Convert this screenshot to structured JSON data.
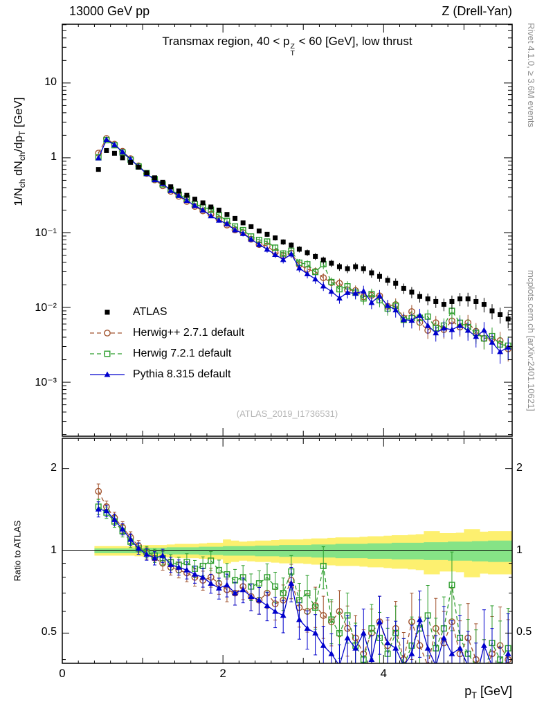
{
  "header": {
    "left": "13000 GeV pp",
    "right": "Z (Drell-Yan)"
  },
  "panel_title": {
    "prefix": "Transmax region, 40 < ",
    "p": "p",
    "sup": "Z",
    "sub": "T",
    "suffix": " < 60 [GeV], low thrust"
  },
  "side_notes": {
    "top_right": "Rivet 4.1.0, ≥ 3.6M events",
    "bottom_right": "mcplots.cern.ch [arXiv:2401.10621]"
  },
  "watermark": "(ATLAS_2019_I1736531)",
  "axis_labels": {
    "y_main_parts": [
      {
        "t": "1/N"
      },
      {
        "t": "ch"
      },
      {
        "t": " dN"
      },
      {
        "t": "ch"
      },
      {
        "t": "/dp"
      },
      {
        "t": "T"
      },
      {
        "t": " [GeV]"
      }
    ],
    "y_ratio": "Ratio to ATLAS",
    "x_parts": [
      {
        "t": "p"
      },
      {
        "t": "T"
      },
      {
        "t": " [GeV]"
      }
    ]
  },
  "chart_data": {
    "type": "line",
    "title": "Transmax region, 40 < pT(Z) < 60 [GeV], low thrust",
    "xlabel": "pT [GeV]",
    "ylabel": "1/Nch dNch/dpT [GeV]",
    "ylabel_ratio": "Ratio to ATLAS",
    "x_range": [
      0,
      5.6
    ],
    "y_main_log_range": [
      0.00019,
      61
    ],
    "y_ratio_log_range": [
      0.39,
      2.57
    ],
    "x_bin_width": 0.1,
    "grid": false,
    "legend_position": "middle-left",
    "x_ticks": [
      {
        "v": 0,
        "label": "0"
      },
      {
        "v": 2,
        "label": "2"
      },
      {
        "v": 4,
        "label": "4"
      }
    ],
    "y_main_ticks": [
      {
        "v": 10,
        "label": "10"
      },
      {
        "v": 1,
        "label": "1"
      },
      {
        "v": 0.1,
        "label": "10⁻¹"
      },
      {
        "v": 0.01,
        "label": "10⁻²"
      },
      {
        "v": 0.001,
        "label": "10⁻³"
      }
    ],
    "y_ratio_ticks": [
      {
        "v": 2,
        "label": "2"
      },
      {
        "v": 1,
        "label": "1"
      },
      {
        "v": 0.5,
        "label": "0.5"
      }
    ],
    "x": [
      0.45,
      0.55,
      0.65,
      0.75,
      0.85,
      0.95,
      1.05,
      1.15,
      1.25,
      1.35,
      1.45,
      1.55,
      1.65,
      1.75,
      1.85,
      1.95,
      2.05,
      2.15,
      2.25,
      2.35,
      2.45,
      2.55,
      2.65,
      2.75,
      2.85,
      2.95,
      3.05,
      3.15,
      3.25,
      3.35,
      3.45,
      3.55,
      3.65,
      3.75,
      3.85,
      3.95,
      4.05,
      4.15,
      4.25,
      4.35,
      4.45,
      4.55,
      4.65,
      4.75,
      4.85,
      4.95,
      5.05,
      5.15,
      5.25,
      5.35,
      5.45,
      5.55
    ],
    "series": [
      {
        "name": "ATLAS",
        "color": "#000000",
        "marker": "filled-square",
        "line": "none",
        "values": [
          0.7,
          1.25,
          1.15,
          1.0,
          0.87,
          0.75,
          0.63,
          0.54,
          0.47,
          0.41,
          0.36,
          0.315,
          0.28,
          0.25,
          0.22,
          0.2,
          0.175,
          0.155,
          0.135,
          0.12,
          0.105,
          0.095,
          0.085,
          0.075,
          0.068,
          0.06,
          0.054,
          0.048,
          0.043,
          0.039,
          0.035,
          0.033,
          0.035,
          0.033,
          0.029,
          0.026,
          0.023,
          0.021,
          0.018,
          0.016,
          0.014,
          0.013,
          0.012,
          0.011,
          0.012,
          0.013,
          0.013,
          0.012,
          0.011,
          0.009,
          0.008,
          0.007
        ]
      },
      {
        "name": "Herwig++ 2.7.1 default",
        "color": "#a0522d",
        "marker": "open-circle",
        "line": "dashed",
        "ratio_to_atlas": [
          1.65,
          1.45,
          1.32,
          1.22,
          1.12,
          1.04,
          0.98,
          0.94,
          0.9,
          0.87,
          0.85,
          0.83,
          0.8,
          0.78,
          0.8,
          0.76,
          0.72,
          0.7,
          0.74,
          0.68,
          0.66,
          0.7,
          0.64,
          0.66,
          0.78,
          0.62,
          0.6,
          0.63,
          0.58,
          0.55,
          0.6,
          0.52,
          0.48,
          0.42,
          0.5,
          0.55,
          0.45,
          0.52,
          0.4,
          0.55,
          0.45,
          0.38,
          0.52,
          0.46,
          0.55,
          0.42,
          0.48,
          0.4,
          0.35,
          0.42,
          0.45,
          0.4
        ]
      },
      {
        "name": "Herwig 7.2.1 default",
        "color": "#2d9e2d",
        "marker": "open-square",
        "line": "dashed",
        "ratio_to_atlas": [
          1.45,
          1.38,
          1.28,
          1.18,
          1.08,
          1.02,
          0.99,
          0.96,
          0.94,
          0.91,
          0.89,
          0.91,
          0.86,
          0.88,
          0.92,
          0.85,
          0.82,
          0.78,
          0.8,
          0.74,
          0.76,
          0.8,
          0.74,
          0.7,
          0.84,
          0.66,
          0.7,
          0.62,
          0.88,
          0.56,
          0.5,
          0.58,
          0.45,
          0.4,
          0.52,
          0.48,
          0.42,
          0.5,
          0.38,
          0.45,
          0.52,
          0.58,
          0.44,
          0.52,
          0.75,
          0.48,
          0.42,
          0.38,
          0.35,
          0.46,
          0.4,
          0.44
        ]
      },
      {
        "name": "Pythia 8.315 default",
        "color": "#0000cd",
        "marker": "filled-triangle",
        "line": "solid",
        "ratio_to_atlas": [
          1.42,
          1.4,
          1.3,
          1.2,
          1.1,
          1.02,
          0.97,
          0.94,
          0.96,
          0.89,
          0.87,
          0.85,
          0.82,
          0.8,
          0.76,
          0.73,
          0.75,
          0.7,
          0.72,
          0.68,
          0.66,
          0.63,
          0.6,
          0.58,
          0.76,
          0.56,
          0.52,
          0.5,
          0.45,
          0.42,
          0.38,
          0.48,
          0.44,
          0.5,
          0.4,
          0.55,
          0.46,
          0.44,
          0.38,
          0.42,
          0.56,
          0.44,
          0.38,
          0.48,
          0.42,
          0.44,
          0.38,
          0.34,
          0.45,
          0.38,
          0.32,
          0.42
        ]
      }
    ],
    "rel_err": [
      0.04,
      0.03,
      0.03,
      0.03,
      0.03,
      0.03,
      0.03,
      0.035,
      0.035,
      0.04,
      0.04,
      0.045,
      0.045,
      0.05,
      0.05,
      0.055,
      0.06,
      0.06,
      0.065,
      0.07,
      0.07,
      0.075,
      0.08,
      0.085,
      0.09,
      0.095,
      0.1,
      0.105,
      0.11,
      0.115,
      0.12,
      0.13,
      0.13,
      0.14,
      0.14,
      0.15,
      0.15,
      0.16,
      0.16,
      0.17,
      0.17,
      0.18,
      0.18,
      0.19,
      0.2,
      0.2,
      0.21,
      0.22,
      0.22,
      0.23,
      0.24,
      0.25
    ],
    "ratio_bands": {
      "yellow_color": "#fdf06f",
      "green_color": "#86e386",
      "green_half": [
        0.02,
        0.02,
        0.02,
        0.02,
        0.02,
        0.02,
        0.025,
        0.025,
        0.025,
        0.03,
        0.03,
        0.03,
        0.03,
        0.035,
        0.035,
        0.035,
        0.04,
        0.04,
        0.04,
        0.04,
        0.045,
        0.045,
        0.045,
        0.05,
        0.05,
        0.05,
        0.05,
        0.055,
        0.055,
        0.055,
        0.06,
        0.06,
        0.06,
        0.06,
        0.065,
        0.065,
        0.065,
        0.07,
        0.07,
        0.07,
        0.07,
        0.075,
        0.075,
        0.075,
        0.08,
        0.08,
        0.08,
        0.085,
        0.085,
        0.09,
        0.09,
        0.09
      ],
      "yellow_half": [
        0.04,
        0.04,
        0.04,
        0.04,
        0.04,
        0.045,
        0.05,
        0.05,
        0.05,
        0.055,
        0.06,
        0.06,
        0.06,
        0.065,
        0.07,
        0.07,
        0.1,
        0.09,
        0.08,
        0.085,
        0.09,
        0.09,
        0.095,
        0.1,
        0.1,
        0.1,
        0.105,
        0.11,
        0.11,
        0.115,
        0.12,
        0.12,
        0.12,
        0.125,
        0.13,
        0.13,
        0.135,
        0.14,
        0.14,
        0.145,
        0.15,
        0.18,
        0.18,
        0.16,
        0.16,
        0.165,
        0.2,
        0.2,
        0.175,
        0.18,
        0.18,
        0.18
      ]
    }
  }
}
